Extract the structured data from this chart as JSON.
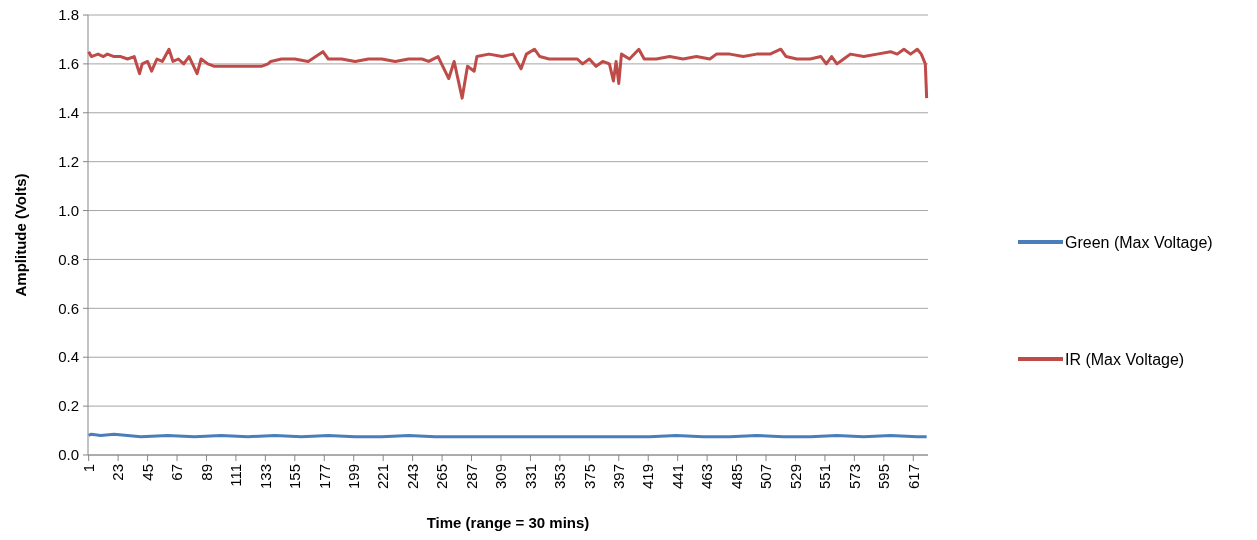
{
  "chart_data": {
    "type": "line",
    "xlabel": "Time (range = 30 mins)",
    "ylabel": "Amplitude (Volts)",
    "xlim": [
      0.5,
      628
    ],
    "xticks": [
      1,
      23,
      45,
      67,
      89,
      111,
      133,
      155,
      177,
      199,
      221,
      243,
      265,
      287,
      309,
      331,
      353,
      375,
      397,
      419,
      441,
      463,
      485,
      507,
      529,
      551,
      573,
      595,
      617
    ],
    "ylim": [
      0,
      1.8
    ],
    "yticks": [
      {
        "value": 0,
        "label": "0.0"
      },
      {
        "value": 0.2,
        "label": "0.2"
      },
      {
        "value": 0.4,
        "label": "0.4"
      },
      {
        "value": 0.6,
        "label": "0.6"
      },
      {
        "value": 0.8,
        "label": "0.8"
      },
      {
        "value": 1,
        "label": "1.0"
      },
      {
        "value": 1.2,
        "label": "1.2"
      },
      {
        "value": 1.4,
        "label": "1.4"
      },
      {
        "value": 1.6,
        "label": "1.6"
      },
      {
        "value": 1.8,
        "label": "1.8"
      }
    ],
    "grid": "y",
    "legend": "right",
    "line_style": "solid",
    "series": [
      {
        "name": "Green (Max Voltage)",
        "color": "#4a7ebb",
        "x": [
          1,
          3,
          10,
          20,
          30,
          40,
          60,
          80,
          100,
          120,
          140,
          160,
          180,
          200,
          220,
          240,
          260,
          280,
          300,
          320,
          340,
          360,
          380,
          400,
          420,
          440,
          460,
          480,
          500,
          520,
          540,
          560,
          580,
          600,
          620,
          627
        ],
        "values": [
          0.08,
          0.085,
          0.08,
          0.085,
          0.08,
          0.075,
          0.08,
          0.075,
          0.08,
          0.075,
          0.08,
          0.075,
          0.08,
          0.075,
          0.075,
          0.08,
          0.075,
          0.075,
          0.075,
          0.075,
          0.075,
          0.075,
          0.075,
          0.075,
          0.075,
          0.08,
          0.075,
          0.075,
          0.08,
          0.075,
          0.075,
          0.08,
          0.075,
          0.08,
          0.075,
          0.075
        ]
      },
      {
        "name": "IR (Max Voltage)",
        "color": "#be4b48",
        "x": [
          1,
          3,
          8,
          12,
          15,
          20,
          25,
          30,
          35,
          39,
          41,
          45,
          48,
          52,
          56,
          61,
          64,
          68,
          72,
          76,
          82,
          85,
          90,
          95,
          100,
          110,
          120,
          130,
          135,
          137,
          145,
          155,
          165,
          176,
          180,
          190,
          200,
          210,
          220,
          230,
          240,
          250,
          255,
          262,
          270,
          274,
          280,
          284,
          289,
          291,
          300,
          310,
          318,
          324,
          328,
          334,
          338,
          345,
          355,
          366,
          370,
          375,
          380,
          385,
          390,
          393,
          395,
          397,
          399,
          405,
          412,
          416,
          425,
          435,
          445,
          455,
          465,
          470,
          480,
          490,
          500,
          510,
          518,
          522,
          530,
          540,
          548,
          552,
          556,
          560,
          565,
          570,
          580,
          590,
          600,
          605,
          610,
          615,
          620,
          623,
          626,
          627
        ],
        "values": [
          1.65,
          1.63,
          1.64,
          1.63,
          1.64,
          1.63,
          1.63,
          1.62,
          1.63,
          1.56,
          1.6,
          1.61,
          1.57,
          1.62,
          1.61,
          1.66,
          1.61,
          1.62,
          1.6,
          1.63,
          1.56,
          1.62,
          1.6,
          1.59,
          1.59,
          1.59,
          1.59,
          1.59,
          1.6,
          1.61,
          1.62,
          1.62,
          1.61,
          1.65,
          1.62,
          1.62,
          1.61,
          1.62,
          1.62,
          1.61,
          1.62,
          1.62,
          1.61,
          1.63,
          1.54,
          1.61,
          1.46,
          1.59,
          1.57,
          1.63,
          1.64,
          1.63,
          1.64,
          1.58,
          1.64,
          1.66,
          1.63,
          1.62,
          1.62,
          1.62,
          1.6,
          1.62,
          1.59,
          1.61,
          1.6,
          1.53,
          1.61,
          1.52,
          1.64,
          1.62,
          1.66,
          1.62,
          1.62,
          1.63,
          1.62,
          1.63,
          1.62,
          1.64,
          1.64,
          1.63,
          1.64,
          1.64,
          1.66,
          1.63,
          1.62,
          1.62,
          1.63,
          1.6,
          1.63,
          1.6,
          1.62,
          1.64,
          1.63,
          1.64,
          1.65,
          1.64,
          1.66,
          1.64,
          1.66,
          1.64,
          1.6,
          1.46
        ]
      }
    ]
  }
}
